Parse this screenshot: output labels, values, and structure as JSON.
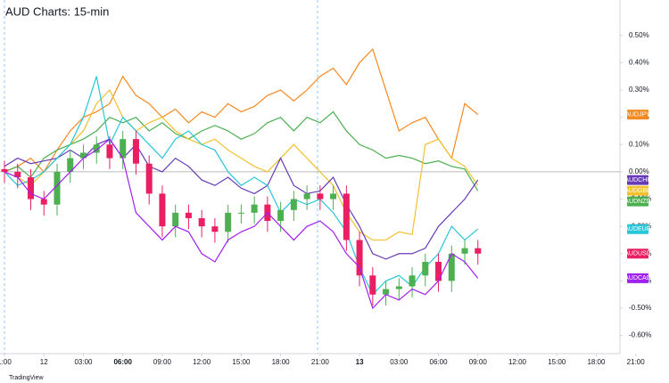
{
  "chart_data": {
    "type": "line",
    "title": "AUD Charts: 15-min",
    "footer": "TradingView",
    "x": [
      0,
      1,
      2,
      3,
      4,
      5,
      6,
      7,
      8,
      9,
      10,
      11,
      12,
      13,
      14,
      15,
      16,
      17,
      18,
      19,
      20,
      21,
      22,
      23,
      24,
      25,
      26,
      27,
      28,
      29,
      30,
      31,
      32,
      33,
      34,
      35,
      36
    ],
    "xlim": [
      -0.34,
      46.8
    ],
    "xticks": [
      {
        "value": 0,
        "label": "1:00"
      },
      {
        "value": 3,
        "label": "12"
      },
      {
        "value": 6,
        "label": "03:00"
      },
      {
        "value": 9,
        "label": "06:00"
      },
      {
        "value": 12,
        "label": "09:00"
      },
      {
        "value": 15,
        "label": "12:00"
      },
      {
        "value": 18,
        "label": "15:00"
      },
      {
        "value": 21,
        "label": "18:00"
      },
      {
        "value": 24,
        "label": "21:00"
      },
      {
        "value": 27,
        "label": "13"
      },
      {
        "value": 30,
        "label": "03:00"
      },
      {
        "value": 33,
        "label": "06:00"
      },
      {
        "value": 36,
        "label": "09:00"
      },
      {
        "value": 39,
        "label": "12:00"
      },
      {
        "value": 42,
        "label": "15:00"
      },
      {
        "value": 45,
        "label": "18:00"
      },
      {
        "value": 48,
        "label": "21:00"
      }
    ],
    "ylim": [
      -0.66,
      0.63
    ],
    "yticks": [
      {
        "value": 0.5,
        "label": "0.50%"
      },
      {
        "value": 0.4,
        "label": "0.40%"
      },
      {
        "value": 0.3,
        "label": "0.30%"
      },
      {
        "value": 0.2,
        "label": "0.20%"
      },
      {
        "value": 0.1,
        "label": "0.10%"
      },
      {
        "value": 0,
        "label": "0.00%"
      },
      {
        "value": -0.1,
        "label": "-0.10%"
      },
      {
        "value": -0.2,
        "label": "-0.20%"
      },
      {
        "value": -0.3,
        "label": "-0.30%"
      },
      {
        "value": -0.4,
        "label": "-0.40%"
      },
      {
        "value": -0.5,
        "label": "-0.50%"
      },
      {
        "value": -0.6,
        "label": "-0.60%"
      }
    ],
    "series": [
      {
        "name": "AUDJPY",
        "color": "#f5891f",
        "values": [
          0,
          0.02,
          0.05,
          0.0,
          0.08,
          0.15,
          0.2,
          0.22,
          0.25,
          0.35,
          0.28,
          0.25,
          0.2,
          0.23,
          0.18,
          0.22,
          0.2,
          0.25,
          0.22,
          0.24,
          0.28,
          0.3,
          0.26,
          0.3,
          0.35,
          0.38,
          0.32,
          0.4,
          0.45,
          0.3,
          0.15,
          0.18,
          0.2,
          0.12,
          0.05,
          0.25,
          0.21
        ]
      },
      {
        "name": "AUDNZD",
        "color": "#4caf50",
        "values": [
          0,
          0.02,
          -0.02,
          0.05,
          0.08,
          0.1,
          0.12,
          0.15,
          0.2,
          0.18,
          0.2,
          0.15,
          0.18,
          0.14,
          0.12,
          0.15,
          0.17,
          0.15,
          0.12,
          0.14,
          0.18,
          0.2,
          0.15,
          0.2,
          0.18,
          0.22,
          0.15,
          0.1,
          0.08,
          0.05,
          0.06,
          0.05,
          0.03,
          0.04,
          0.02,
          0.01,
          -0.07
        ]
      },
      {
        "name": "AUDGBP",
        "color": "#f2c12e",
        "values": [
          0,
          -0.02,
          -0.05,
          0.0,
          0.05,
          0.1,
          0.15,
          0.25,
          0.3,
          0.2,
          0.15,
          0.18,
          0.2,
          0.15,
          0.12,
          0.1,
          0.12,
          0.08,
          0.05,
          0.02,
          0.0,
          0.05,
          0.1,
          0.05,
          0.0,
          -0.05,
          -0.15,
          -0.22,
          -0.25,
          -0.25,
          -0.22,
          -0.23,
          0.1,
          0.12,
          0.05,
          0.02,
          -0.05
        ]
      },
      {
        "name": "AUDCHF",
        "color": "#673ab7",
        "values": [
          0.02,
          0.05,
          0.03,
          0.04,
          0.05,
          0.08,
          0.05,
          0.1,
          0.12,
          0.05,
          0.1,
          0.02,
          0.0,
          0.05,
          0.02,
          -0.03,
          -0.05,
          -0.02,
          -0.06,
          -0.08,
          -0.05,
          0.05,
          -0.05,
          -0.08,
          -0.07,
          -0.02,
          -0.12,
          -0.2,
          -0.3,
          -0.32,
          -0.3,
          -0.3,
          -0.28,
          -0.2,
          -0.15,
          -0.1,
          -0.03
        ]
      },
      {
        "name": "AUDEUR",
        "color": "#26c6da",
        "values": [
          0,
          -0.05,
          -0.03,
          0.0,
          0.05,
          0.1,
          0.2,
          0.35,
          0.1,
          0.2,
          0.15,
          0.1,
          0.05,
          0.12,
          0.15,
          0.1,
          0.08,
          0.0,
          -0.05,
          -0.02,
          -0.05,
          -0.15,
          -0.1,
          -0.12,
          -0.1,
          -0.15,
          -0.22,
          -0.35,
          -0.45,
          -0.4,
          -0.38,
          -0.42,
          -0.35,
          -0.3,
          -0.2,
          -0.25,
          -0.21
        ]
      },
      {
        "name": "AUDUSD",
        "type": "candlestick",
        "color": "#e91e63",
        "up_color": "#4caf50",
        "open": [
          0.01,
          0,
          -0.02,
          -0.1,
          -0.12,
          0,
          0.05,
          0.07,
          0.1,
          0.05,
          0.12,
          0.03,
          -0.08,
          -0.2,
          -0.15,
          -0.17,
          -0.2,
          -0.22,
          -0.15,
          -0.15,
          -0.12,
          -0.18,
          -0.14,
          -0.1,
          -0.08,
          -0.1,
          -0.08,
          -0.25,
          -0.38,
          -0.45,
          -0.43,
          -0.42,
          -0.38,
          -0.33,
          -0.4,
          -0.3,
          -0.28
        ],
        "high": [
          0.04,
          0.03,
          0.01,
          -0.07,
          0.03,
          0.08,
          0.1,
          0.13,
          0.13,
          0.15,
          0.15,
          0.06,
          -0.05,
          -0.12,
          -0.12,
          -0.14,
          -0.17,
          -0.12,
          -0.12,
          -0.09,
          -0.09,
          -0.11,
          -0.07,
          -0.05,
          -0.05,
          -0.05,
          -0.05,
          -0.22,
          -0.35,
          -0.4,
          -0.39,
          -0.35,
          -0.3,
          -0.3,
          -0.27,
          -0.25,
          -0.25
        ],
        "low": [
          -0.04,
          -0.06,
          -0.14,
          -0.16,
          -0.16,
          -0.04,
          0.01,
          0.03,
          0.01,
          0.01,
          -0.01,
          -0.12,
          -0.24,
          -0.24,
          -0.21,
          -0.24,
          -0.26,
          -0.26,
          -0.19,
          -0.19,
          -0.22,
          -0.22,
          -0.18,
          -0.14,
          -0.14,
          -0.14,
          -0.29,
          -0.42,
          -0.49,
          -0.49,
          -0.47,
          -0.46,
          -0.42,
          -0.44,
          -0.44,
          -0.34,
          -0.34
        ],
        "close": [
          0,
          -0.02,
          -0.1,
          -0.12,
          0,
          0.05,
          0.07,
          0.1,
          0.05,
          0.12,
          0.03,
          -0.08,
          -0.2,
          -0.15,
          -0.17,
          -0.2,
          -0.22,
          -0.15,
          -0.15,
          -0.12,
          -0.18,
          -0.14,
          -0.1,
          -0.08,
          -0.1,
          -0.08,
          -0.25,
          -0.38,
          -0.45,
          -0.43,
          -0.42,
          -0.38,
          -0.33,
          -0.4,
          -0.3,
          -0.28,
          -0.3
        ]
      },
      {
        "name": "AUDCAD",
        "color": "#a020f0",
        "values": [
          0,
          -0.02,
          -0.08,
          -0.1,
          -0.05,
          0.0,
          0.05,
          0.08,
          0.12,
          0.05,
          -0.15,
          -0.2,
          -0.25,
          -0.2,
          -0.22,
          -0.3,
          -0.33,
          -0.25,
          -0.22,
          -0.2,
          -0.15,
          -0.2,
          -0.25,
          -0.2,
          -0.18,
          -0.22,
          -0.3,
          -0.35,
          -0.5,
          -0.45,
          -0.47,
          -0.43,
          -0.45,
          -0.4,
          -0.3,
          -0.33,
          -0.39
        ]
      }
    ]
  }
}
